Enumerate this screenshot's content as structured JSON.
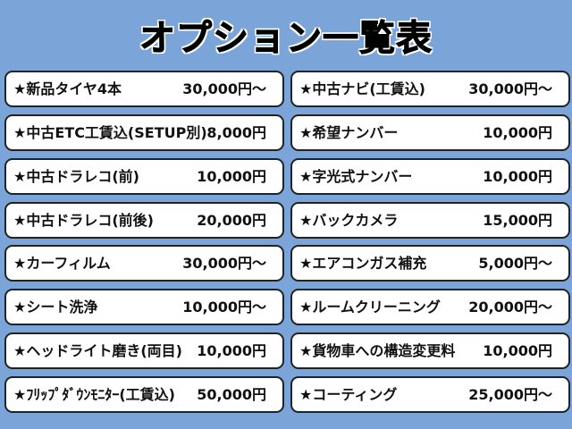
{
  "title": "オプション一覧表",
  "columns": [
    {
      "items": [
        {
          "name": "★新品タイヤ4本",
          "price": "30,000円～"
        },
        {
          "name": "★中古ETC工賃込(SETUP別)",
          "price": "8,000円"
        },
        {
          "name": "★中古ドラレコ(前)",
          "price": "10,000円"
        },
        {
          "name": "★中古ドラレコ(前後)",
          "price": "20,000円"
        },
        {
          "name": "★カーフィルム",
          "price": "30,000円～"
        },
        {
          "name": "★シート洗浄",
          "price": "10,000円～"
        },
        {
          "name": "★ヘッドライト磨き(両目)",
          "price": "10,000円"
        },
        {
          "name": "★ﾌﾘｯﾌﾟﾀﾞｳﾝﾓﾆﾀｰ(工賃込)",
          "price": "50,000円"
        }
      ]
    },
    {
      "items": [
        {
          "name": "★中古ナビ(工賃込)",
          "price": "30,000円～"
        },
        {
          "name": "★希望ナンバー",
          "price": "10,000円"
        },
        {
          "name": "★字光式ナンバー",
          "price": "10,000円"
        },
        {
          "name": "★バックカメラ",
          "price": "15,000円"
        },
        {
          "name": "★エアコンガス補充",
          "price": "5,000円～"
        },
        {
          "name": "★ルームクリーニング",
          "price": "20,000円～"
        },
        {
          "name": "★貨物車への構造変更料",
          "price": "10,000円"
        },
        {
          "name": "★コーティング",
          "price": "25,000円～"
        }
      ]
    }
  ]
}
